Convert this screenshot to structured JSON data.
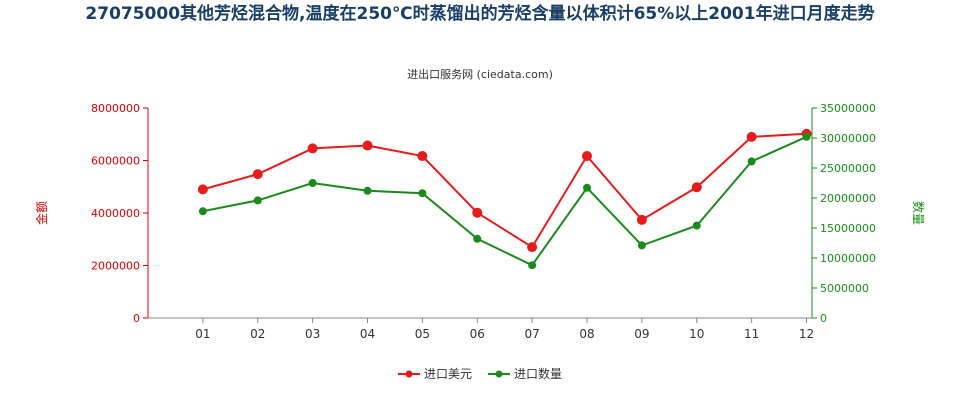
{
  "title": "27075000其他芳烃混合物,温度在250℃时蒸馏出的芳烃含量以体积计65%以上2001年进口月度走势",
  "subtitle": "进出口服务网 (ciedata.com)",
  "colors": {
    "left_axis": "#e00000",
    "right_axis": "#1a8c1a",
    "series_value": "#e61c1c",
    "series_qty": "#1a8a1a"
  },
  "chart_data": {
    "type": "line",
    "categories": [
      "01",
      "02",
      "03",
      "04",
      "05",
      "06",
      "07",
      "08",
      "09",
      "10",
      "11",
      "12"
    ],
    "series": [
      {
        "name": "进口美元",
        "axis": "left",
        "values": [
          4900000,
          5480000,
          6460000,
          6570000,
          6170000,
          4010000,
          2700000,
          6170000,
          3740000,
          4980000,
          6900000,
          7020000
        ]
      },
      {
        "name": "进口数量",
        "axis": "right",
        "values": [
          17800000,
          19600000,
          22500000,
          21200000,
          20800000,
          13200000,
          8800000,
          21700000,
          12100000,
          15400000,
          26100000,
          30200000
        ]
      }
    ],
    "y_left": {
      "label": "金额",
      "min": 0,
      "max": 8000000,
      "ticks": [
        "0",
        "2000000",
        "4000000",
        "6000000",
        "8000000"
      ]
    },
    "y_right": {
      "label": "数量",
      "min": 0,
      "max": 35000000,
      "ticks": [
        "0",
        "5000000",
        "10000000",
        "15000000",
        "20000000",
        "25000000",
        "30000000",
        "35000000"
      ]
    },
    "legend": "bottom-center",
    "grid": false
  }
}
